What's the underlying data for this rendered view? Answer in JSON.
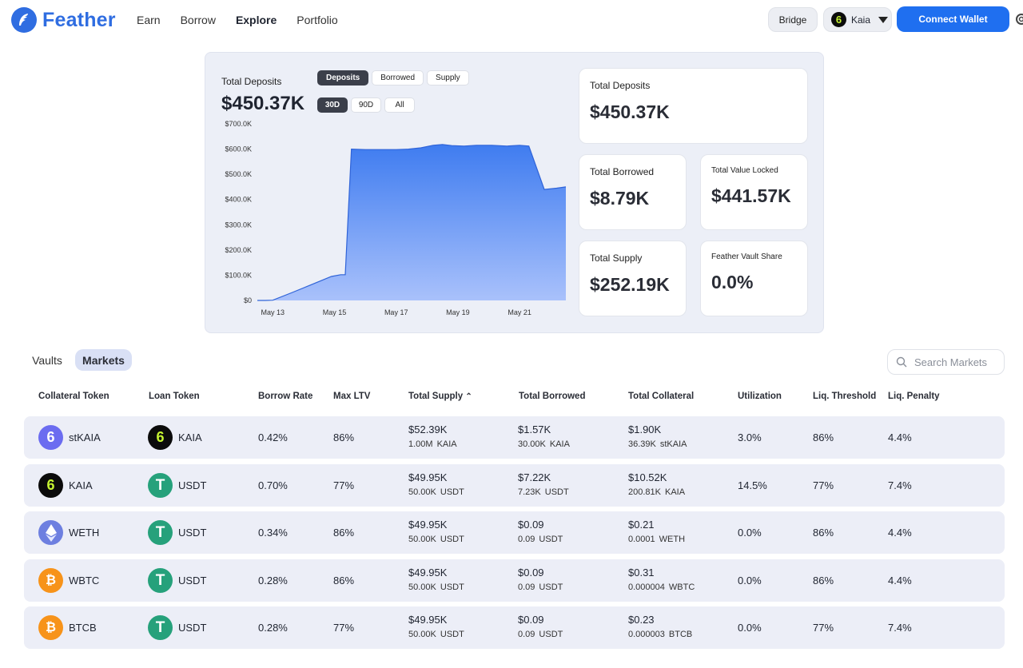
{
  "brand": {
    "name": "Feather",
    "color": "#2f6de1"
  },
  "nav": {
    "items": [
      "Earn",
      "Borrow",
      "Explore",
      "Portfolio"
    ],
    "active": "Explore"
  },
  "header": {
    "bridge_label": "Bridge",
    "network_label": "Kaia",
    "connect_label": "Connect Wallet"
  },
  "chart_card": {
    "title": "Total Deposits",
    "metric_tabs": [
      "Deposits",
      "Borrowed",
      "Supply"
    ],
    "metric_selected": "Deposits",
    "range_tabs": [
      "30D",
      "90D",
      "All"
    ],
    "range_selected": "30D",
    "value": "$450.37K"
  },
  "chart_data": {
    "type": "area",
    "title": "Total Deposits",
    "xlabel": "",
    "ylabel": "",
    "y_tick_labels": [
      "$700.0K",
      "$600.0K",
      "$500.0K",
      "$400.0K",
      "$300.0K",
      "$200.0K",
      "$100.0K",
      "$0"
    ],
    "x_tick_labels": [
      "May 13",
      "May 15",
      "May 17",
      "May 19",
      "May 21"
    ],
    "ylim": [
      0,
      700
    ],
    "y_unit": "$K",
    "x": [
      12.5,
      12.75,
      13.0,
      13.6,
      14.2,
      14.9,
      15.2,
      15.35,
      15.55,
      16.0,
      16.5,
      17.0,
      17.4,
      17.8,
      18.2,
      18.5,
      18.8,
      19.2,
      19.6,
      20.1,
      20.6,
      21.0,
      21.3,
      21.8,
      22.2,
      22.5
    ],
    "series": [
      {
        "values": [
          0,
          0,
          1,
          30,
          60,
          95,
          102,
          102,
          600,
          598,
          598,
          598,
          600,
          605,
          615,
          618,
          614,
          612,
          615,
          615,
          612,
          615,
          612,
          440,
          445,
          450
        ]
      }
    ],
    "grid": false,
    "fill_color": "#3f7cf0"
  },
  "stats": {
    "total_deposits": {
      "label": "Total Deposits",
      "value": "$450.37K"
    },
    "total_borrowed": {
      "label": "Total Borrowed",
      "value": "$8.79K"
    },
    "tvl": {
      "label": "Total Value Locked",
      "value": "$441.57K"
    },
    "total_supply": {
      "label": "Total Supply",
      "value": "$252.19K"
    },
    "vault_share": {
      "label": "Feather Vault Share",
      "value": "0.0%"
    }
  },
  "tabs": {
    "vaults": "Vaults",
    "markets": "Markets",
    "active": "Markets"
  },
  "search": {
    "placeholder": "Search Markets"
  },
  "table": {
    "headers": [
      "Collateral Token",
      "Loan Token",
      "Borrow Rate",
      "Max LTV",
      "Total Supply",
      "Total Borrowed",
      "Total Collateral",
      "Utilization",
      "Liq. Threshold",
      "Liq. Penalty"
    ],
    "sorted_by": "Total Supply",
    "rows": [
      {
        "collateral": "stKAIA",
        "collateral_icon": "stkaia-icon",
        "loan": "KAIA",
        "loan_icon": "kaia-icon",
        "borrow_rate": "0.42%",
        "max_ltv": "86%",
        "supply_usd": "$52.39K",
        "supply_amt": "1.00M",
        "supply_unit": "KAIA",
        "borrowed_usd": "$1.57K",
        "borrowed_amt": "30.00K",
        "borrowed_unit": "KAIA",
        "collateral_usd": "$1.90K",
        "collateral_amt": "36.39K",
        "collateral_unit": "stKAIA",
        "utilization": "3.0%",
        "liq_threshold": "86%",
        "liq_penalty": "4.4%"
      },
      {
        "collateral": "KAIA",
        "collateral_icon": "kaia-icon",
        "loan": "USDT",
        "loan_icon": "usdt-icon",
        "borrow_rate": "0.70%",
        "max_ltv": "77%",
        "supply_usd": "$49.95K",
        "supply_amt": "50.00K",
        "supply_unit": "USDT",
        "borrowed_usd": "$7.22K",
        "borrowed_amt": "7.23K",
        "borrowed_unit": "USDT",
        "collateral_usd": "$10.52K",
        "collateral_amt": "200.81K",
        "collateral_unit": "KAIA",
        "utilization": "14.5%",
        "liq_threshold": "77%",
        "liq_penalty": "7.4%"
      },
      {
        "collateral": "WETH",
        "collateral_icon": "eth-icon",
        "loan": "USDT",
        "loan_icon": "usdt-icon",
        "borrow_rate": "0.34%",
        "max_ltv": "86%",
        "supply_usd": "$49.95K",
        "supply_amt": "50.00K",
        "supply_unit": "USDT",
        "borrowed_usd": "$0.09",
        "borrowed_amt": "0.09",
        "borrowed_unit": "USDT",
        "collateral_usd": "$0.21",
        "collateral_amt": "0.0001",
        "collateral_unit": "WETH",
        "utilization": "0.0%",
        "liq_threshold": "86%",
        "liq_penalty": "4.4%"
      },
      {
        "collateral": "WBTC",
        "collateral_icon": "btc-icon",
        "loan": "USDT",
        "loan_icon": "usdt-icon",
        "borrow_rate": "0.28%",
        "max_ltv": "86%",
        "supply_usd": "$49.95K",
        "supply_amt": "50.00K",
        "supply_unit": "USDT",
        "borrowed_usd": "$0.09",
        "borrowed_amt": "0.09",
        "borrowed_unit": "USDT",
        "collateral_usd": "$0.31",
        "collateral_amt": "0.000004",
        "collateral_unit": "WBTC",
        "utilization": "0.0%",
        "liq_threshold": "86%",
        "liq_penalty": "4.4%"
      },
      {
        "collateral": "BTCB",
        "collateral_icon": "btc-icon",
        "loan": "USDT",
        "loan_icon": "usdt-icon",
        "borrow_rate": "0.28%",
        "max_ltv": "77%",
        "supply_usd": "$49.95K",
        "supply_amt": "50.00K",
        "supply_unit": "USDT",
        "borrowed_usd": "$0.09",
        "borrowed_amt": "0.09",
        "borrowed_unit": "USDT",
        "collateral_usd": "$0.23",
        "collateral_amt": "0.000003",
        "collateral_unit": "BTCB",
        "utilization": "0.0%",
        "liq_threshold": "77%",
        "liq_penalty": "7.4%"
      }
    ]
  }
}
